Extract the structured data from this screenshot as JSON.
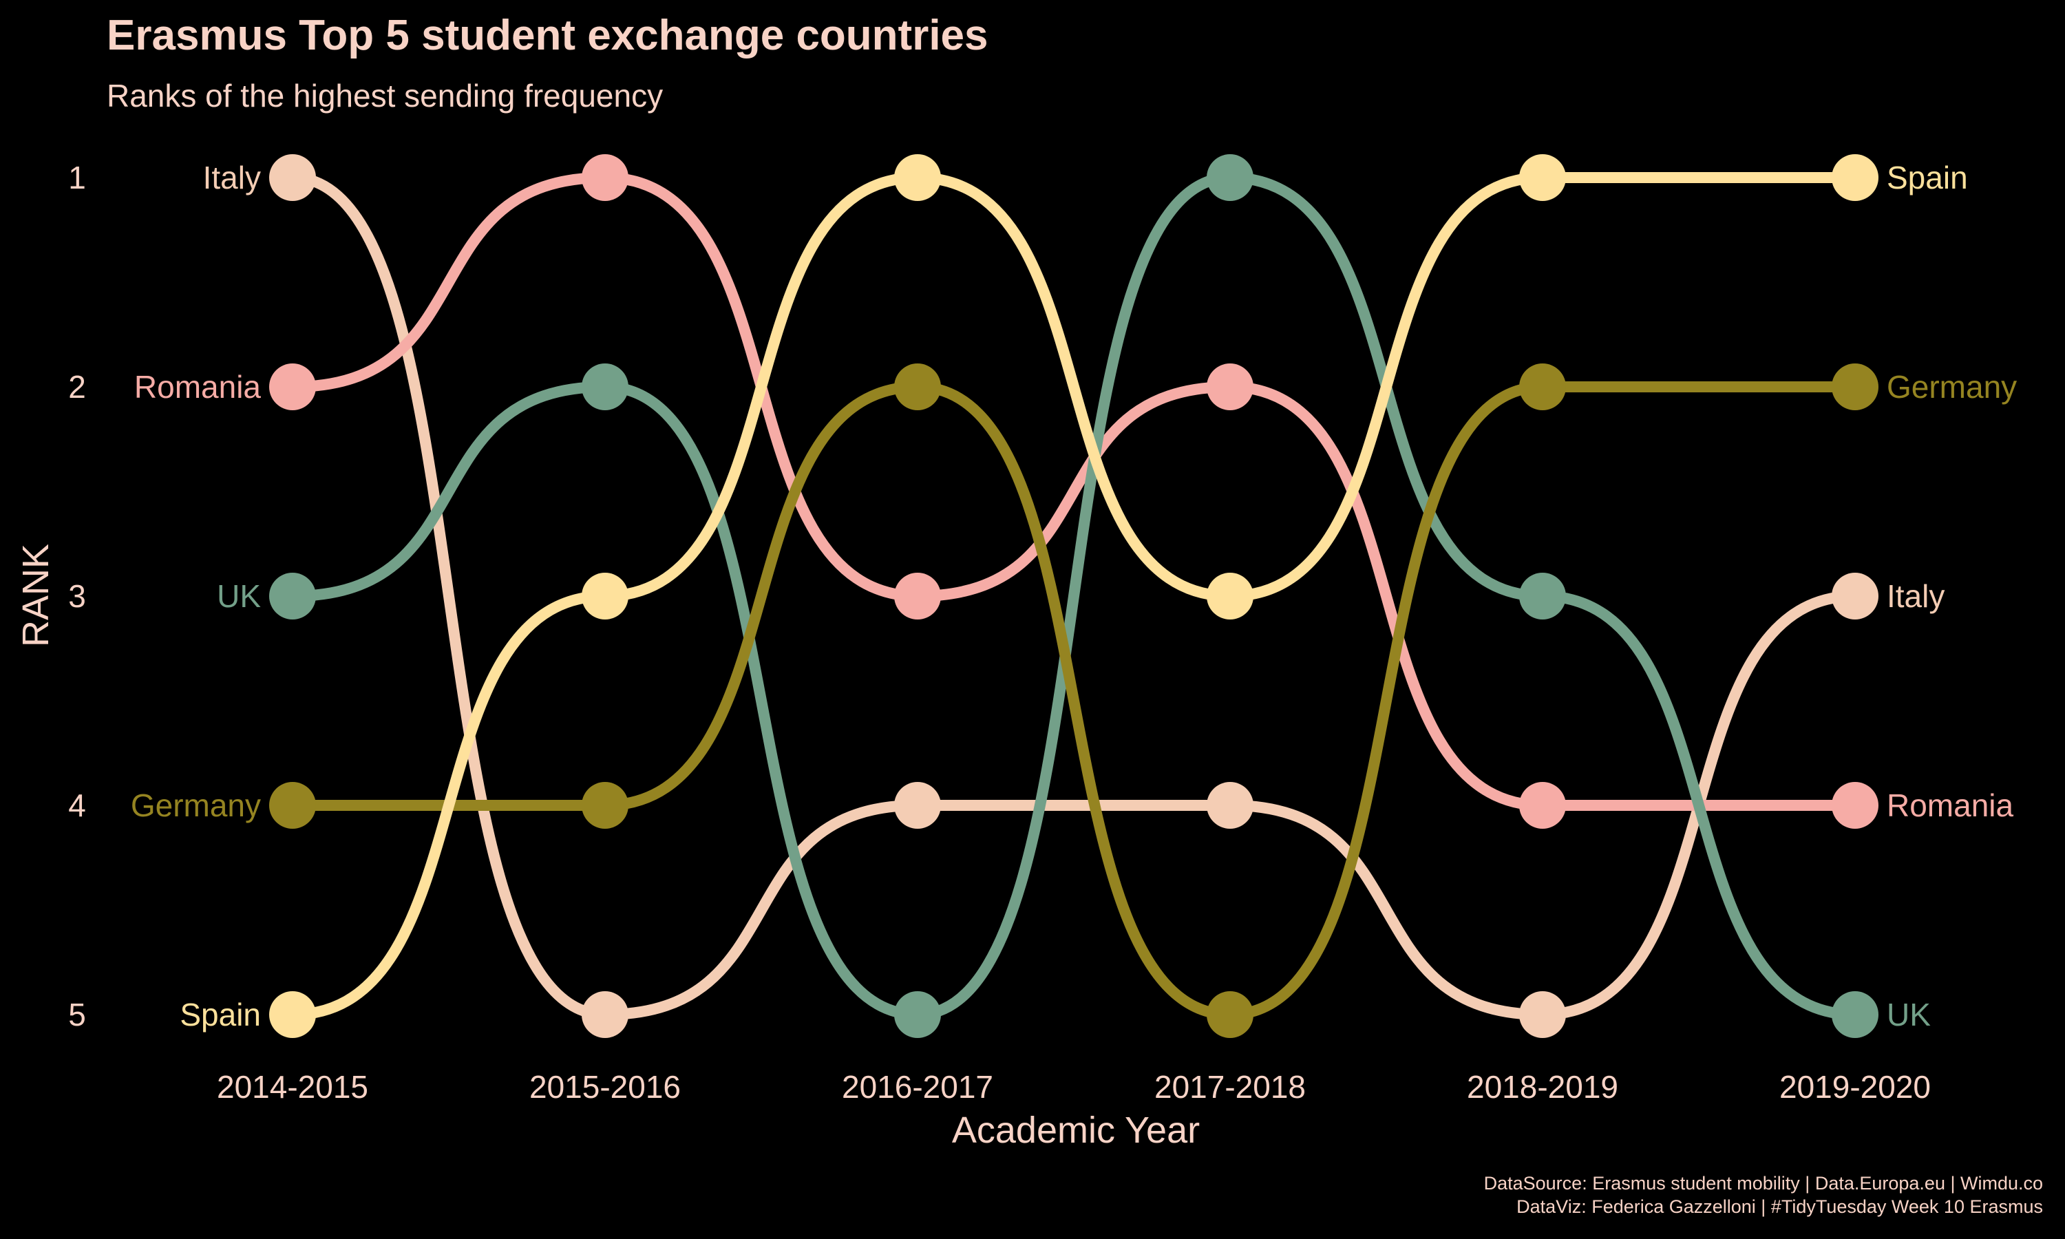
{
  "chart_data": {
    "type": "line",
    "title": "Erasmus Top 5 student exchange countries",
    "subtitle": "Ranks of the highest sending frequency",
    "xlabel": "Academic Year",
    "ylabel": "RANK",
    "x": [
      "2014-2015",
      "2015-2016",
      "2016-2017",
      "2017-2018",
      "2018-2019",
      "2019-2020"
    ],
    "y_ticks": [
      "1",
      "2",
      "3",
      "4",
      "5"
    ],
    "ylim": [
      1,
      5
    ],
    "y_reversed": true,
    "grid": false,
    "legend": "direct labels at both ends",
    "background": "#000000",
    "text_color": "#f8d3c6",
    "series": [
      {
        "name": "Italy",
        "color": "#f4cdb4",
        "values": [
          1,
          5,
          4,
          4,
          5,
          3
        ]
      },
      {
        "name": "Romania",
        "color": "#f6aca6",
        "values": [
          2,
          1,
          3,
          2,
          4,
          4
        ]
      },
      {
        "name": "UK",
        "color": "#73a089",
        "values": [
          3,
          2,
          5,
          1,
          3,
          5
        ]
      },
      {
        "name": "Germany",
        "color": "#958421",
        "values": [
          4,
          4,
          2,
          5,
          2,
          2
        ]
      },
      {
        "name": "Spain",
        "color": "#fee19c",
        "values": [
          5,
          3,
          1,
          3,
          1,
          1
        ]
      }
    ],
    "caption": [
      "DataSource: Erasmus student mobility | Data.Europa.eu | Wimdu.co",
      "DataViz: Federica Gazzelloni | #TidyTuesday Week 10 Erasmus"
    ]
  }
}
